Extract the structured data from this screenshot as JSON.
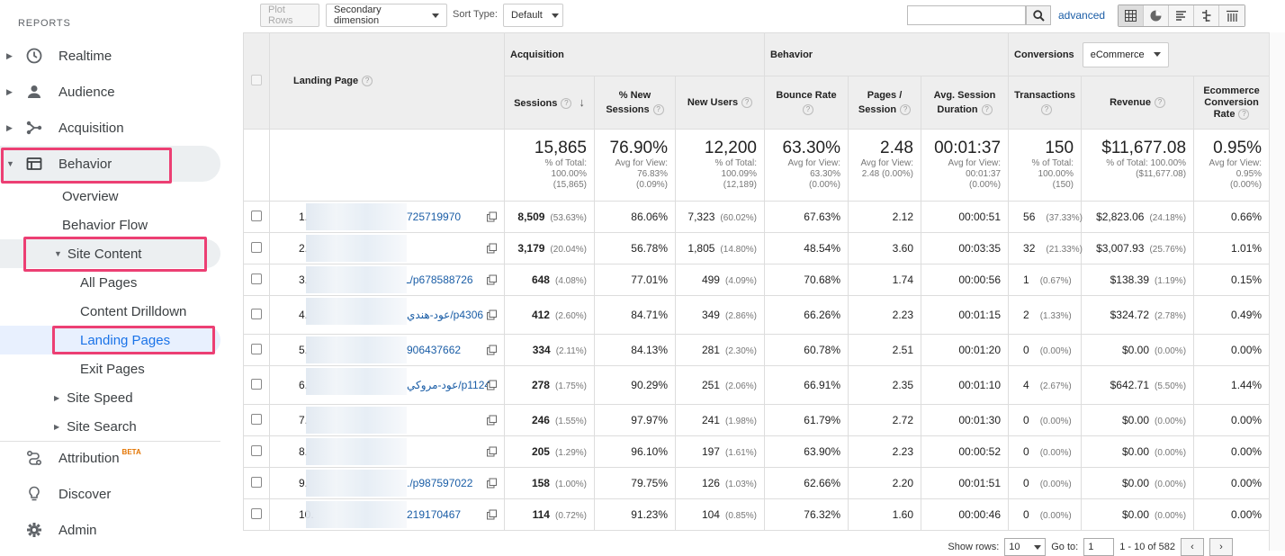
{
  "sidebar": {
    "heading": "REPORTS",
    "items": [
      {
        "label": "Realtime",
        "icon": "clock-icon"
      },
      {
        "label": "Audience",
        "icon": "person-icon"
      },
      {
        "label": "Acquisition",
        "icon": "acquisition-icon"
      },
      {
        "label": "Behavior",
        "icon": "behavior-icon"
      }
    ],
    "behavior_sub": [
      "Overview",
      "Behavior Flow",
      "Site Content"
    ],
    "site_content_sub": [
      "All Pages",
      "Content Drilldown",
      "Landing Pages",
      "Exit Pages"
    ],
    "more_sub": [
      "Site Speed",
      "Site Search"
    ],
    "bottom": [
      {
        "label": "Attribution",
        "icon": "attribution-icon",
        "badge": "BETA"
      },
      {
        "label": "Discover",
        "icon": "lightbulb-icon"
      },
      {
        "label": "Admin",
        "icon": "gear-icon"
      }
    ]
  },
  "toolbar": {
    "plot_rows": "Plot Rows",
    "secondary_dimension": "Secondary dimension",
    "sort_type_label": "Sort Type:",
    "sort_type_value": "Default",
    "search_value": "",
    "advanced": "advanced"
  },
  "table": {
    "landing_page_header": "Landing Page",
    "groups": {
      "acquisition": "Acquisition",
      "behavior": "Behavior",
      "conversions": "Conversions",
      "conversions_select": "eCommerce"
    },
    "columns": {
      "sessions": "Sessions",
      "new_sessions_1": "% New",
      "new_sessions_2": "Sessions",
      "new_users": "New Users",
      "bounce_rate": "Bounce Rate",
      "pages_session_1": "Pages /",
      "pages_session_2": "Session",
      "avg_duration_1": "Avg. Session",
      "avg_duration_2": "Duration",
      "transactions": "Transactions",
      "revenue": "Revenue",
      "ecom_rate_1": "Ecommerce",
      "ecom_rate_2": "Conversion",
      "ecom_rate_3": "Rate"
    },
    "totals": {
      "sessions": {
        "big": "15,865",
        "l1": "% of Total:",
        "l2": "100.00%",
        "l3": "(15,865)"
      },
      "new_sessions": {
        "big": "76.90%",
        "l1": "Avg for View:",
        "l2": "76.83%",
        "l3": "(0.09%)"
      },
      "new_users": {
        "big": "12,200",
        "l1": "% of Total:",
        "l2": "100.09%",
        "l3": "(12,189)"
      },
      "bounce_rate": {
        "big": "63.30%",
        "l1": "Avg for View:",
        "l2": "63.30%",
        "l3": "(0.00%)"
      },
      "pages_session": {
        "big": "2.48",
        "l1": "Avg for View:",
        "l2": "2.48 (0.00%)",
        "l3": ""
      },
      "avg_duration": {
        "big": "00:01:37",
        "l1": "Avg for View:",
        "l2": "00:01:37",
        "l3": "(0.00%)"
      },
      "transactions": {
        "big": "150",
        "l1": "% of Total:",
        "l2": "100.00%",
        "l3": "(150)"
      },
      "revenue": {
        "big": "$11,677.08",
        "l1": "% of Total: 100.00%",
        "l2": "($11,677.08)",
        "l3": ""
      },
      "ecom_rate": {
        "big": "0.95%",
        "l1": "Avg for View:",
        "l2": "0.95%",
        "l3": "(0.00%)"
      }
    },
    "rows": [
      {
        "idx": "1.",
        "page": "725719970",
        "sessions": "8,509",
        "sessions_pct": "(53.63%)",
        "new_sessions": "86.06%",
        "new_users": "7,323",
        "new_users_pct": "(60.02%)",
        "bounce": "67.63%",
        "pages": "2.12",
        "duration": "00:00:51",
        "trans": "56",
        "trans_pct": "(37.33%)",
        "revenue": "$2,823.06",
        "revenue_pct": "(24.18%)",
        "ecom": "0.66%"
      },
      {
        "idx": "2.",
        "page": "",
        "sessions": "3,179",
        "sessions_pct": "(20.04%)",
        "new_sessions": "56.78%",
        "new_users": "1,805",
        "new_users_pct": "(14.80%)",
        "bounce": "48.54%",
        "pages": "3.60",
        "duration": "00:03:35",
        "trans": "32",
        "trans_pct": "(21.33%)",
        "revenue": "$3,007.93",
        "revenue_pct": "(25.76%)",
        "ecom": "1.01%"
      },
      {
        "idx": "3.",
        "page": "ـ/p678588726",
        "sessions": "648",
        "sessions_pct": "(4.08%)",
        "new_sessions": "77.01%",
        "new_users": "499",
        "new_users_pct": "(4.09%)",
        "bounce": "70.68%",
        "pages": "1.74",
        "duration": "00:00:56",
        "trans": "1",
        "trans_pct": "(0.67%)",
        "revenue": "$138.39",
        "revenue_pct": "(1.19%)",
        "ecom": "0.15%"
      },
      {
        "idx": "4.",
        "page": "عود-هندي/p4306",
        "sessions": "412",
        "sessions_pct": "(2.60%)",
        "new_sessions": "84.71%",
        "new_users": "349",
        "new_users_pct": "(2.86%)",
        "bounce": "66.26%",
        "pages": "2.23",
        "duration": "00:01:15",
        "trans": "2",
        "trans_pct": "(1.33%)",
        "revenue": "$324.72",
        "revenue_pct": "(2.78%)",
        "ecom": "0.49%"
      },
      {
        "idx": "5.",
        "page": "906437662",
        "sessions": "334",
        "sessions_pct": "(2.11%)",
        "new_sessions": "84.13%",
        "new_users": "281",
        "new_users_pct": "(2.30%)",
        "bounce": "60.78%",
        "pages": "2.51",
        "duration": "00:01:20",
        "trans": "0",
        "trans_pct": "(0.00%)",
        "revenue": "$0.00",
        "revenue_pct": "(0.00%)",
        "ecom": "0.00%"
      },
      {
        "idx": "6.",
        "page": "عود-مروكي/p1124",
        "sessions": "278",
        "sessions_pct": "(1.75%)",
        "new_sessions": "90.29%",
        "new_users": "251",
        "new_users_pct": "(2.06%)",
        "bounce": "66.91%",
        "pages": "2.35",
        "duration": "00:01:10",
        "trans": "4",
        "trans_pct": "(2.67%)",
        "revenue": "$642.71",
        "revenue_pct": "(5.50%)",
        "ecom": "1.44%"
      },
      {
        "idx": "7.",
        "page": "",
        "sessions": "246",
        "sessions_pct": "(1.55%)",
        "new_sessions": "97.97%",
        "new_users": "241",
        "new_users_pct": "(1.98%)",
        "bounce": "61.79%",
        "pages": "2.72",
        "duration": "00:01:30",
        "trans": "0",
        "trans_pct": "(0.00%)",
        "revenue": "$0.00",
        "revenue_pct": "(0.00%)",
        "ecom": "0.00%"
      },
      {
        "idx": "8.",
        "page": "",
        "sessions": "205",
        "sessions_pct": "(1.29%)",
        "new_sessions": "96.10%",
        "new_users": "197",
        "new_users_pct": "(1.61%)",
        "bounce": "63.90%",
        "pages": "2.23",
        "duration": "00:00:52",
        "trans": "0",
        "trans_pct": "(0.00%)",
        "revenue": "$0.00",
        "revenue_pct": "(0.00%)",
        "ecom": "0.00%"
      },
      {
        "idx": "9.",
        "page": "./p987597022",
        "sessions": "158",
        "sessions_pct": "(1.00%)",
        "new_sessions": "79.75%",
        "new_users": "126",
        "new_users_pct": "(1.03%)",
        "bounce": "62.66%",
        "pages": "2.20",
        "duration": "00:01:51",
        "trans": "0",
        "trans_pct": "(0.00%)",
        "revenue": "$0.00",
        "revenue_pct": "(0.00%)",
        "ecom": "0.00%"
      },
      {
        "idx": "10.",
        "page": "219170467",
        "sessions": "114",
        "sessions_pct": "(0.72%)",
        "new_sessions": "91.23%",
        "new_users": "104",
        "new_users_pct": "(0.85%)",
        "bounce": "76.32%",
        "pages": "1.60",
        "duration": "00:00:46",
        "trans": "0",
        "trans_pct": "(0.00%)",
        "revenue": "$0.00",
        "revenue_pct": "(0.00%)",
        "ecom": "0.00%"
      }
    ]
  },
  "footer": {
    "show_rows_label": "Show rows:",
    "show_rows_value": "10",
    "goto_label": "Go to:",
    "goto_value": "1",
    "range": "1 - 10 of 582"
  },
  "colors": {
    "accent": "#1a73e8",
    "highlight": "#ec3f73",
    "link": "#1a5da6"
  }
}
